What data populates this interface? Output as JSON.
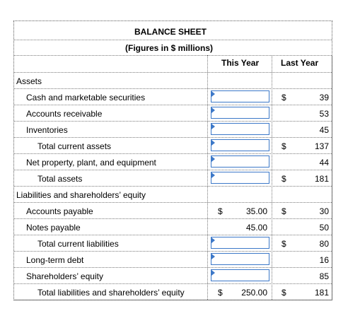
{
  "header": {
    "title": "BALANCE SHEET",
    "subtitle": "(Figures in $ millions)",
    "col_this_year": "This Year",
    "col_last_year": "Last Year"
  },
  "rows": [
    {
      "label": "Assets",
      "indent": 0,
      "this_input": false,
      "this_dollar": "",
      "this_value": "",
      "last_dollar": "",
      "last_value": ""
    },
    {
      "label": "Cash and marketable securities",
      "indent": 1,
      "this_input": true,
      "this_dollar": "",
      "this_value": "",
      "last_dollar": "$",
      "last_value": "39"
    },
    {
      "label": "Accounts receivable",
      "indent": 1,
      "this_input": true,
      "this_dollar": "",
      "this_value": "",
      "last_dollar": "",
      "last_value": "53"
    },
    {
      "label": "Inventories",
      "indent": 1,
      "this_input": true,
      "this_dollar": "",
      "this_value": "",
      "last_dollar": "",
      "last_value": "45"
    },
    {
      "label": "Total current assets",
      "indent": 2,
      "this_input": true,
      "this_dollar": "",
      "this_value": "",
      "last_dollar": "$",
      "last_value": "137"
    },
    {
      "label": "Net property, plant, and equipment",
      "indent": 1,
      "this_input": true,
      "this_dollar": "",
      "this_value": "",
      "last_dollar": "",
      "last_value": "44"
    },
    {
      "label": "Total assets",
      "indent": 2,
      "this_input": true,
      "this_dollar": "",
      "this_value": "",
      "last_dollar": "$",
      "last_value": "181"
    },
    {
      "label": "Liabilities and shareholders’ equity",
      "indent": 0,
      "this_input": false,
      "this_dollar": "",
      "this_value": "",
      "last_dollar": "",
      "last_value": ""
    },
    {
      "label": "Accounts payable",
      "indent": 1,
      "this_input": false,
      "this_dollar": "$",
      "this_value": "35.00",
      "last_dollar": "$",
      "last_value": "30"
    },
    {
      "label": "Notes payable",
      "indent": 1,
      "this_input": false,
      "this_dollar": "",
      "this_value": "45.00",
      "last_dollar": "",
      "last_value": "50"
    },
    {
      "label": "Total current liabilities",
      "indent": 2,
      "this_input": true,
      "this_dollar": "",
      "this_value": "",
      "last_dollar": "$",
      "last_value": "80"
    },
    {
      "label": "Long-term debt",
      "indent": 1,
      "this_input": true,
      "this_dollar": "",
      "this_value": "",
      "last_dollar": "",
      "last_value": "16"
    },
    {
      "label": "Shareholders’ equity",
      "indent": 1,
      "this_input": true,
      "this_dollar": "",
      "this_value": "",
      "last_dollar": "",
      "last_value": "85"
    },
    {
      "label": "Total liabilities and shareholders’ equity",
      "indent": 2,
      "this_input": false,
      "this_dollar": "$",
      "this_value": "250.00",
      "last_dollar": "$",
      "last_value": "181"
    }
  ]
}
